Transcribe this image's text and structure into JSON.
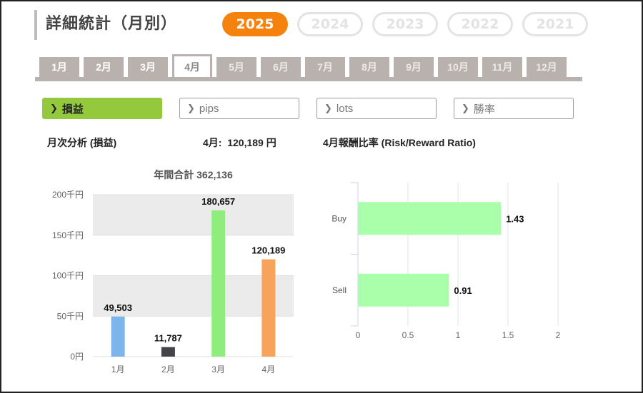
{
  "header": {
    "title": "詳細統計（月別）"
  },
  "years": [
    {
      "label": "2025",
      "active": true
    },
    {
      "label": "2024",
      "active": false
    },
    {
      "label": "2023",
      "active": false
    },
    {
      "label": "2022",
      "active": false
    },
    {
      "label": "2021",
      "active": false
    }
  ],
  "months": [
    {
      "label": "1月",
      "state": "normal"
    },
    {
      "label": "2月",
      "state": "normal"
    },
    {
      "label": "3月",
      "state": "normal"
    },
    {
      "label": "4月",
      "state": "active"
    },
    {
      "label": "5月",
      "state": "dim"
    },
    {
      "label": "6月",
      "state": "dim"
    },
    {
      "label": "7月",
      "state": "dim"
    },
    {
      "label": "8月",
      "state": "dim"
    },
    {
      "label": "9月",
      "state": "dim"
    },
    {
      "label": "10月",
      "state": "dim"
    },
    {
      "label": "11月",
      "state": "dim"
    },
    {
      "label": "12月",
      "state": "dim"
    }
  ],
  "metrics": [
    {
      "label": "損益",
      "active": true
    },
    {
      "label": "pips",
      "active": false
    },
    {
      "label": "lots",
      "active": false
    },
    {
      "label": "勝率",
      "active": false
    }
  ],
  "monthly": {
    "heading": "月次分析 (損益)",
    "summary_month": "4月:",
    "summary_value": "120,189 円"
  },
  "ratio": {
    "heading": "4月報酬比率 (Risk/Reward Ratio)"
  },
  "colors": {
    "accent": "#f5820d",
    "active_metric": "#95c93d",
    "tab_gray": "#b8b1ae"
  },
  "chart_data": [
    {
      "type": "bar",
      "title": "年間合計 362,136",
      "categories": [
        "1月",
        "2月",
        "3月",
        "4月"
      ],
      "values": [
        49503,
        11787,
        180657,
        120189
      ],
      "labels": [
        "49,503",
        "11,787",
        "180,657",
        "120,189"
      ],
      "colors": [
        "#7cb5ec",
        "#434348",
        "#90ed7d",
        "#f7a35c"
      ],
      "ylim": [
        0,
        200000
      ],
      "yticks": [
        0,
        50000,
        100000,
        150000,
        200000
      ],
      "ytick_labels": [
        "0円",
        "50千円",
        "100千円",
        "150千円",
        "200千円"
      ],
      "banded_background": true
    },
    {
      "type": "bar",
      "orientation": "horizontal",
      "categories": [
        "Buy",
        "Sell"
      ],
      "values": [
        1.43,
        0.91
      ],
      "labels": [
        "1.43",
        "0.91"
      ],
      "color": "#aaffaa",
      "xlim": [
        0,
        2
      ],
      "xticks": [
        0,
        0.5,
        1,
        1.5,
        2
      ],
      "xtick_labels": [
        "0",
        "0.5",
        "1",
        "1.5",
        "2"
      ],
      "grid": true
    }
  ]
}
